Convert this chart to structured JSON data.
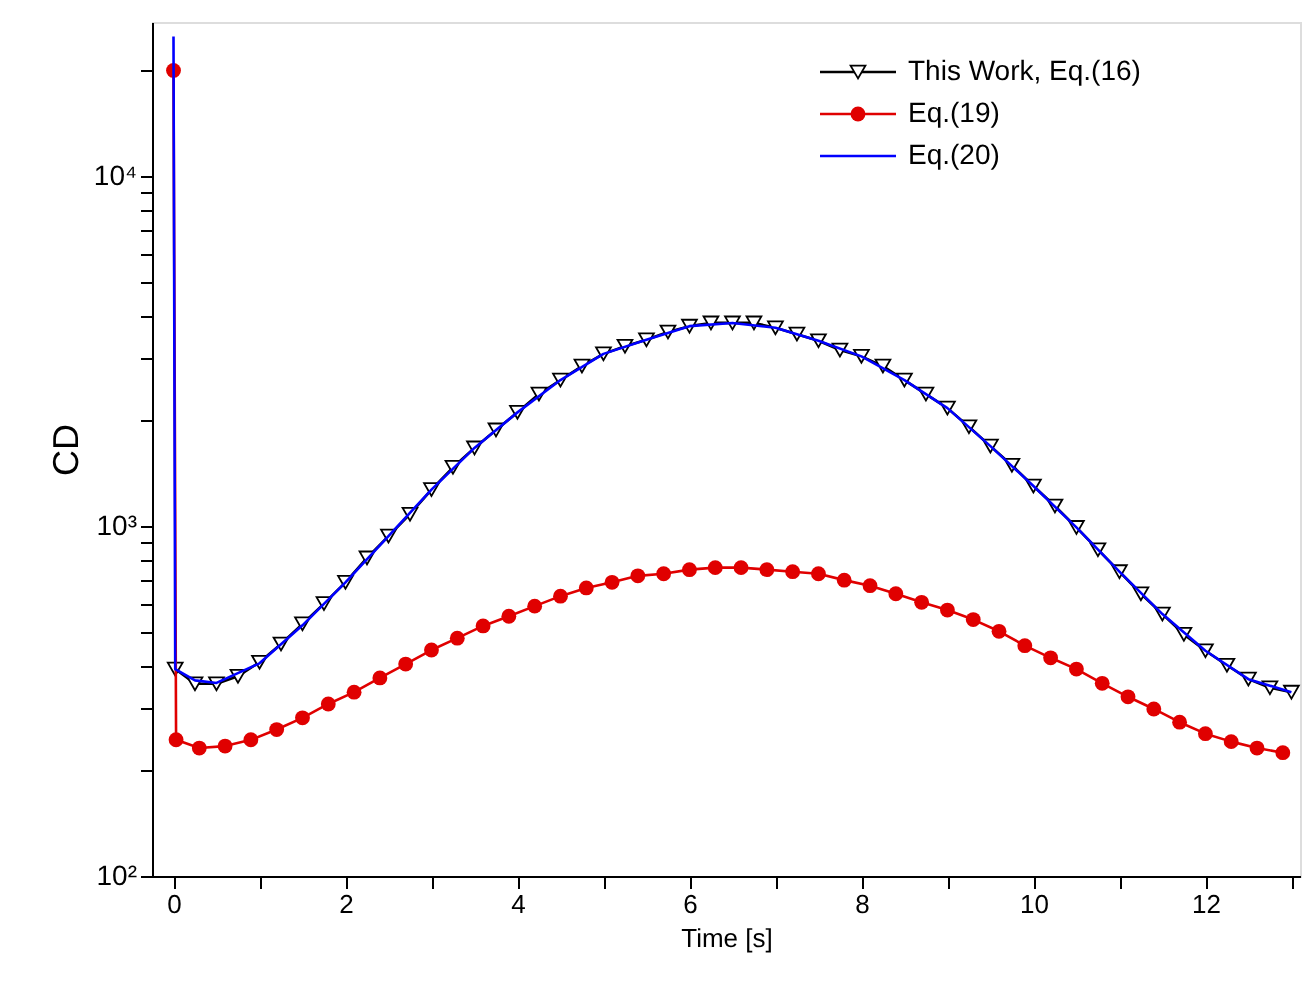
{
  "chart_data": {
    "type": "line",
    "xlabel": "Time [s]",
    "ylabel": "CD",
    "log": "y",
    "grid": false,
    "legend": "top right",
    "xlim": [
      -0.25,
      13.1
    ],
    "xticks": [
      0,
      {
        "value": 1,
        "label": null
      },
      2,
      {
        "value": 3,
        "label": null
      },
      4,
      {
        "value": 5,
        "label": null
      },
      6,
      {
        "value": 7,
        "label": null
      },
      8,
      {
        "value": 9,
        "label": null
      },
      10,
      {
        "value": 11,
        "label": null
      },
      12,
      {
        "value": 13,
        "label": null
      }
    ],
    "ylim": [
      100,
      27500
    ],
    "yticks": [
      {
        "value": 100,
        "label": "10²"
      },
      {
        "value": 200,
        "label": null
      },
      {
        "value": 300,
        "label": null
      },
      {
        "value": 400,
        "label": null
      },
      {
        "value": 500,
        "label": null
      },
      {
        "value": 600,
        "label": null
      },
      {
        "value": 700,
        "label": null
      },
      {
        "value": 800,
        "label": null
      },
      {
        "value": 900,
        "label": null
      },
      {
        "value": 1000,
        "label": "10³"
      },
      {
        "value": 2000,
        "label": null
      },
      {
        "value": 3000,
        "label": null
      },
      {
        "value": 4000,
        "label": null
      },
      {
        "value": 5000,
        "label": null
      },
      {
        "value": 6000,
        "label": null
      },
      {
        "value": 7000,
        "label": null
      },
      {
        "value": 8000,
        "label": null
      },
      {
        "value": 9000,
        "label": null
      },
      {
        "value": 10000,
        "label": "10⁴"
      },
      {
        "value": 20000,
        "label": null
      }
    ],
    "series": [
      {
        "name": "This Work, Eq.(16)",
        "color": "#000000",
        "marker": "triangle",
        "x": [
          0.02,
          0.25,
          0.5,
          0.75,
          1.0,
          1.25,
          1.5,
          1.75,
          2.0,
          2.25,
          2.5,
          2.75,
          3.0,
          3.25,
          3.5,
          3.75,
          4.0,
          4.25,
          4.5,
          4.75,
          5.0,
          5.25,
          5.5,
          5.75,
          6.0,
          6.25,
          6.5,
          6.75,
          7.0,
          7.25,
          7.5,
          7.75,
          8.0,
          8.25,
          8.5,
          8.75,
          9.0,
          9.25,
          9.5,
          9.75,
          10.0,
          10.25,
          10.5,
          10.75,
          11.0,
          11.25,
          11.5,
          11.75,
          12.0,
          12.25,
          12.5,
          12.75,
          13.0
        ],
        "values": [
          390,
          354,
          354,
          372,
          408,
          460,
          525,
          600,
          690,
          810,
          935,
          1080,
          1270,
          1470,
          1670,
          1880,
          2110,
          2380,
          2610,
          2860,
          3100,
          3260,
          3400,
          3580,
          3720,
          3800,
          3800,
          3800,
          3680,
          3530,
          3380,
          3180,
          3050,
          2860,
          2610,
          2380,
          2170,
          1920,
          1690,
          1490,
          1300,
          1140,
          990,
          855,
          740,
          640,
          560,
          490,
          440,
          400,
          365,
          345,
          335
        ]
      },
      {
        "name": "Eq.(19)",
        "color": "#e00000",
        "marker": "circle",
        "x": [
          0,
          0.03,
          0.3,
          0.6,
          0.9,
          1.2,
          1.5,
          1.8,
          2.1,
          2.4,
          2.7,
          3.0,
          3.3,
          3.6,
          3.9,
          4.2,
          4.5,
          4.8,
          5.1,
          5.4,
          5.7,
          6.0,
          6.3,
          6.6,
          6.9,
          7.2,
          7.5,
          7.8,
          8.1,
          8.4,
          8.7,
          9.0,
          9.3,
          9.6,
          9.9,
          10.2,
          10.5,
          10.8,
          11.1,
          11.4,
          11.7,
          12.0,
          12.3,
          12.6,
          12.9
        ],
        "values": [
          20000,
          245,
          232,
          235,
          245,
          262,
          283,
          310,
          335,
          368,
          403,
          442,
          478,
          518,
          552,
          590,
          630,
          665,
          690,
          720,
          730,
          750,
          760,
          760,
          750,
          740,
          730,
          700,
          675,
          640,
          605,
          575,
          540,
          500,
          455,
          420,
          390,
          355,
          325,
          300,
          275,
          255,
          242,
          232,
          225
        ]
      },
      {
        "name": "Eq.(20)",
        "color": "#0000ff",
        "marker": "none",
        "x": [
          0,
          0.02,
          0.25,
          0.5,
          1.0,
          1.5,
          2.0,
          2.5,
          3.0,
          3.5,
          4.0,
          4.5,
          5.0,
          5.5,
          6.0,
          6.5,
          7.0,
          7.5,
          8.0,
          8.5,
          9.0,
          9.5,
          10.0,
          10.5,
          11.0,
          11.5,
          12.0,
          12.5,
          13.0
        ],
        "values": [
          25000,
          390,
          362,
          356,
          405,
          520,
          690,
          935,
          1270,
          1670,
          2110,
          2610,
          3100,
          3400,
          3720,
          3800,
          3680,
          3380,
          3050,
          2610,
          2170,
          1690,
          1300,
          990,
          740,
          560,
          440,
          365,
          335
        ]
      }
    ]
  }
}
